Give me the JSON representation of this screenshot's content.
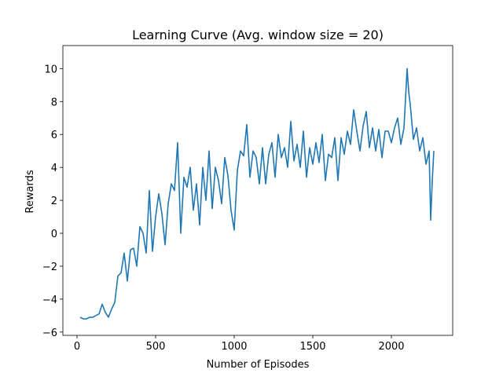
{
  "chart_data": {
    "type": "line",
    "title": "Learning Curve (Avg. window size = 20)",
    "xlabel": "Number of Episodes",
    "ylabel": "Rewards",
    "xlim": [
      -90,
      2390
    ],
    "ylim": [
      -6.2,
      11.4
    ],
    "xticks": [
      0,
      500,
      1000,
      1500,
      2000
    ],
    "xtick_labels": [
      "0",
      "500",
      "1000",
      "1500",
      "2000"
    ],
    "yticks": [
      -6,
      -4,
      -2,
      0,
      2,
      4,
      6,
      8,
      10
    ],
    "ytick_labels": [
      "−6",
      "−4",
      "−2",
      "0",
      "2",
      "4",
      "6",
      "8",
      "10"
    ],
    "grid": false,
    "legend": "none",
    "line_color": "#1f77b4",
    "series": [
      {
        "x": [
          20,
          40,
          60,
          80,
          100,
          120,
          140,
          160,
          180,
          200,
          220,
          240,
          260,
          280,
          300,
          320,
          340,
          360,
          380,
          400,
          420,
          440,
          460,
          480,
          500,
          520,
          540,
          560,
          580,
          600,
          620,
          640,
          660,
          680,
          700,
          720,
          740,
          760,
          780,
          800,
          820,
          840,
          860,
          880,
          900,
          920,
          940,
          960,
          980,
          1000,
          1020,
          1040,
          1060,
          1080,
          1100,
          1120,
          1140,
          1160,
          1180,
          1200,
          1220,
          1240,
          1260,
          1280,
          1300,
          1320,
          1340,
          1360,
          1380,
          1400,
          1420,
          1440,
          1460,
          1480,
          1500,
          1520,
          1540,
          1560,
          1580,
          1600,
          1620,
          1640,
          1660,
          1680,
          1700,
          1720,
          1740,
          1760,
          1780,
          1800,
          1820,
          1840,
          1860,
          1880,
          1900,
          1920,
          1940,
          1960,
          1980,
          2000,
          2020,
          2040,
          2060,
          2080,
          2100,
          2110,
          2120,
          2140,
          2160,
          2180,
          2200,
          2220,
          2240,
          2250,
          2260,
          2270
        ],
        "y": [
          -5.1,
          -5.2,
          -5.2,
          -5.1,
          -5.1,
          -5.0,
          -4.9,
          -4.3,
          -4.8,
          -5.1,
          -4.6,
          -4.2,
          -2.6,
          -2.4,
          -1.2,
          -2.9,
          -1.0,
          -0.9,
          -2.0,
          0.4,
          0.0,
          -1.2,
          2.6,
          -1.1,
          1.0,
          2.4,
          1.2,
          -0.7,
          1.8,
          3.0,
          2.6,
          5.5,
          0.0,
          3.4,
          2.8,
          4.0,
          1.4,
          3.0,
          0.5,
          4.0,
          2.0,
          5.0,
          1.5,
          4.0,
          3.2,
          1.8,
          4.6,
          3.5,
          1.4,
          0.2,
          3.8,
          5.0,
          4.7,
          6.6,
          3.4,
          5.0,
          4.6,
          3.0,
          5.2,
          3.0,
          4.8,
          5.5,
          3.4,
          6.0,
          4.6,
          5.2,
          4.0,
          6.8,
          4.4,
          5.4,
          4.0,
          6.2,
          3.4,
          5.2,
          4.2,
          5.5,
          4.3,
          6.0,
          3.2,
          4.8,
          4.6,
          5.8,
          3.2,
          5.8,
          4.8,
          6.2,
          5.4,
          7.5,
          6.2,
          5.0,
          6.5,
          7.4,
          5.2,
          6.4,
          5.0,
          6.3,
          4.6,
          6.2,
          6.2,
          5.5,
          6.4,
          7.0,
          5.4,
          6.4,
          10.0,
          8.6,
          7.8,
          5.7,
          6.4,
          5.0,
          5.8,
          4.2,
          5.0,
          0.8,
          3.2,
          5.0
        ]
      }
    ]
  }
}
